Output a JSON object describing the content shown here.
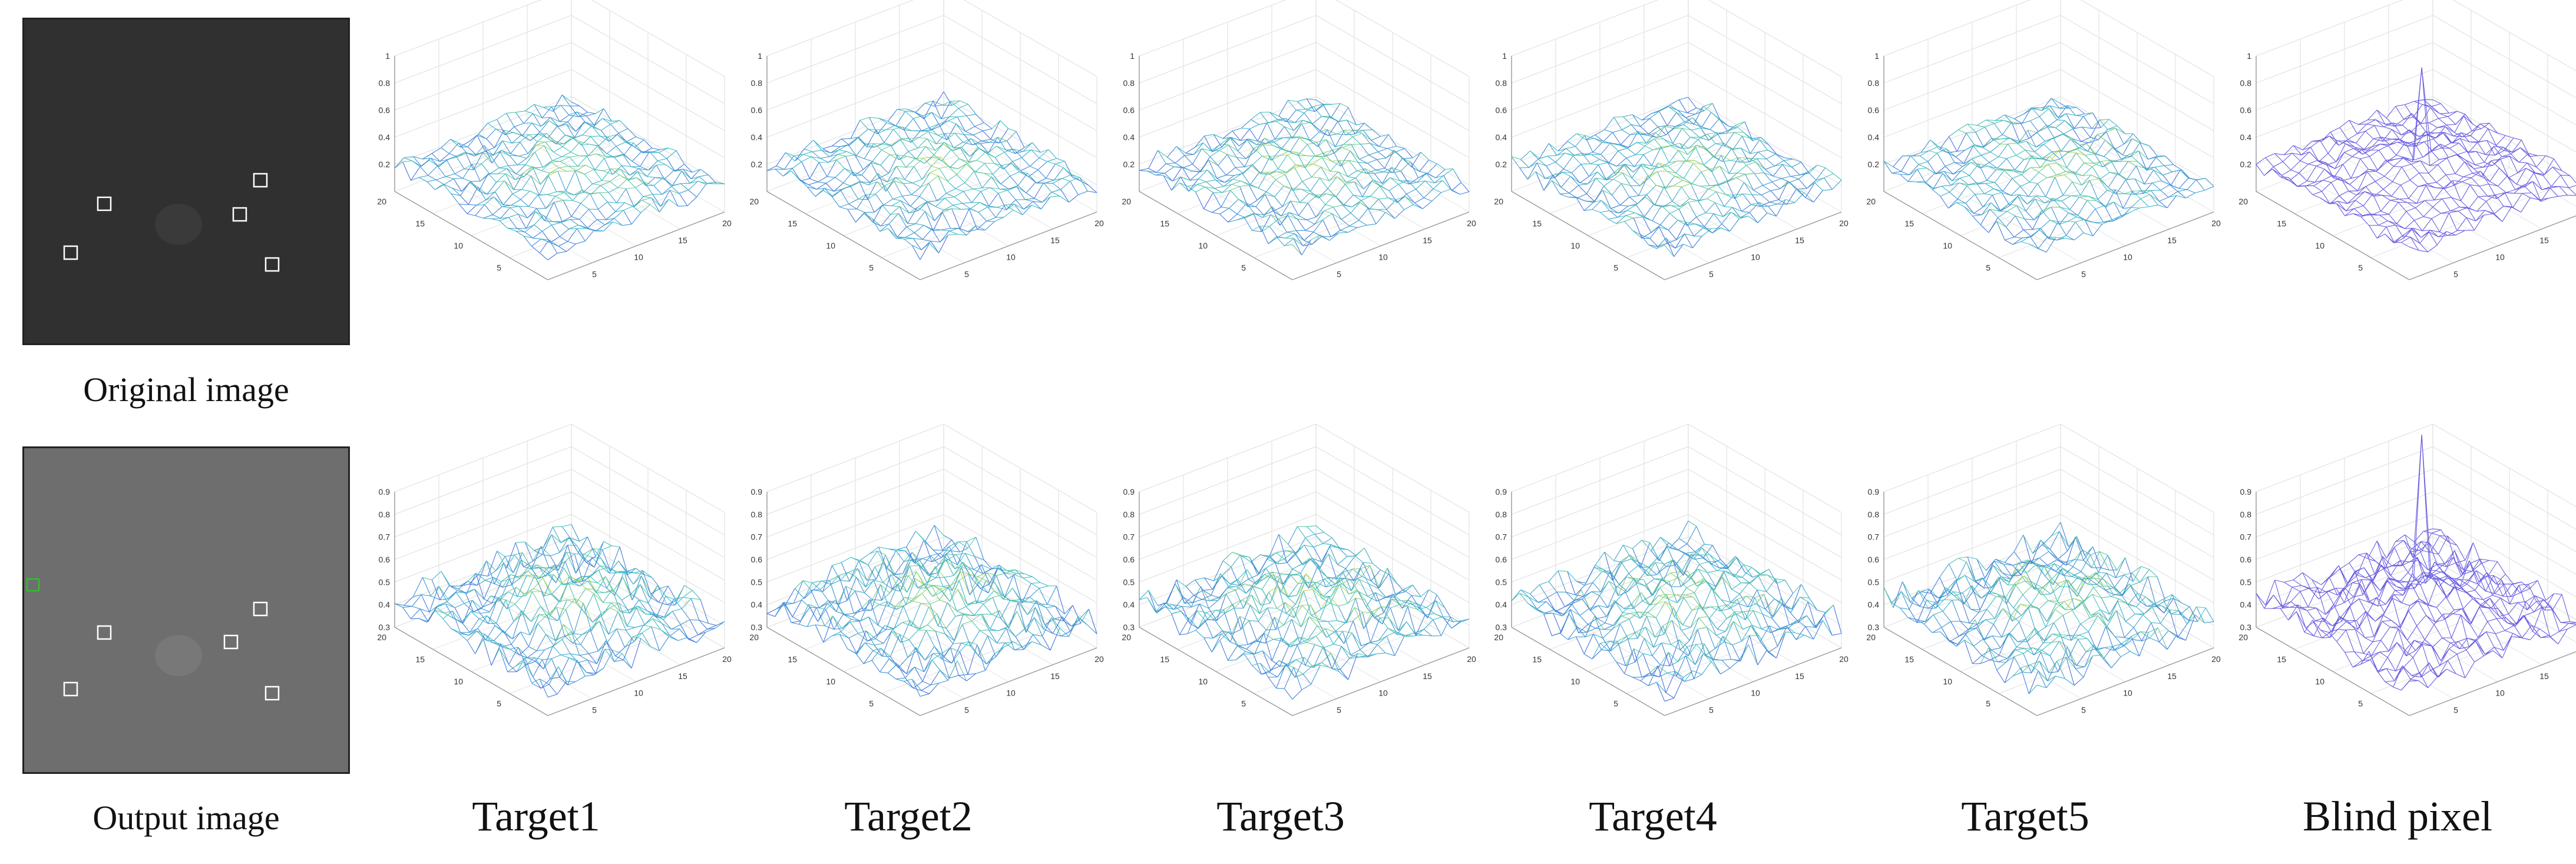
{
  "rows": [
    {
      "id": "original",
      "caption": "Original image",
      "image_background": "#303030",
      "z_ticks": [
        "1",
        "0.8",
        "0.6",
        "0.4",
        "0.2"
      ],
      "z_range": [
        0,
        1
      ],
      "baseline": 0.2
    },
    {
      "id": "output",
      "caption": "Output image",
      "image_background": "#6e6e6e",
      "z_ticks": [
        "0.9",
        "0.8",
        "0.7",
        "0.6",
        "0.5",
        "0.4",
        "0.3"
      ],
      "z_range": [
        0.3,
        0.9
      ],
      "baseline": 0.42
    }
  ],
  "column_captions": [
    "Target1",
    "Target2",
    "Target3",
    "Target4",
    "Target5",
    "Blind pixel"
  ],
  "axis_ticks": {
    "x": [
      "5",
      "10",
      "15",
      "20"
    ],
    "y": [
      "20",
      "15",
      "10",
      "5"
    ]
  },
  "chart_data": {
    "type": "surface",
    "grid_size": [
      20,
      20
    ],
    "x_range": [
      1,
      20
    ],
    "y_range": [
      1,
      20
    ],
    "grid": true,
    "colormap": "parula",
    "panels": [
      {
        "name": "Target1",
        "peak_height": 0.08
      },
      {
        "name": "Target2",
        "peak_height": 0.08
      },
      {
        "name": "Target3",
        "peak_height": 0.06
      },
      {
        "name": "Target4",
        "peak_height": 0.07
      },
      {
        "name": "Target5",
        "peak_height": 0.07
      },
      {
        "name": "Blind pixel",
        "peak_height": 0.76,
        "colormap": "purple"
      }
    ]
  },
  "colors": {
    "box_outline": "#ffffff",
    "green_marker": "#2fbf2f",
    "surface_low": "#4b6fe0",
    "surface_mid": "#3fc0c8",
    "surface_high": "#d8e040",
    "blind_surface": "#6a5fe0",
    "grid_line": "#e2e2e2",
    "axis_line": "#9a9a9a"
  }
}
